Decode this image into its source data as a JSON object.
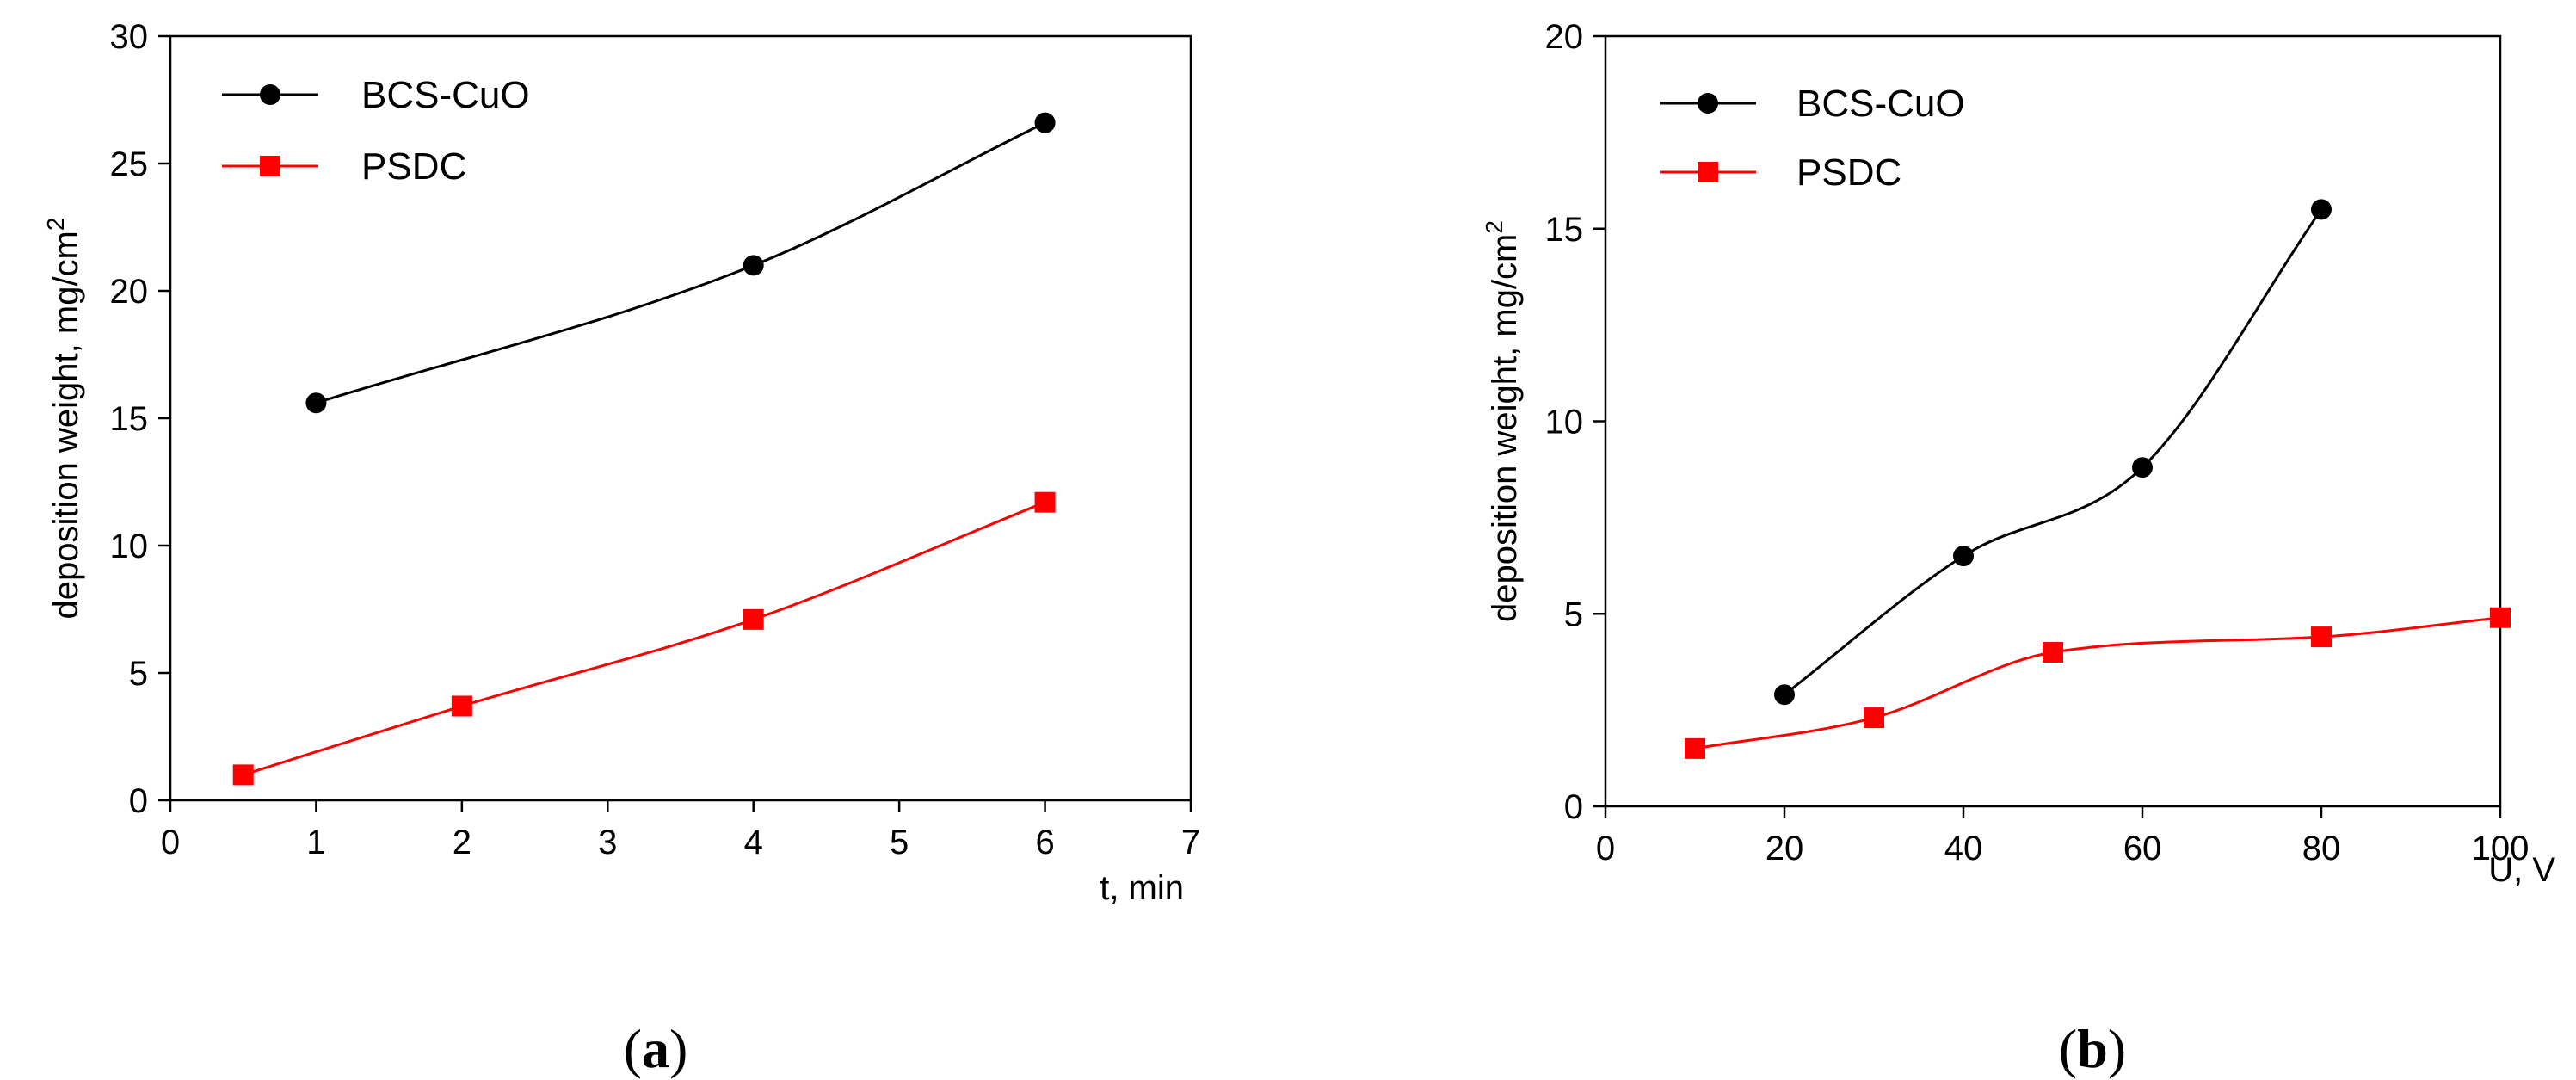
{
  "chart_data": [
    {
      "id": "a",
      "type": "line",
      "caption_open": "(",
      "caption_letter": "a",
      "caption_close": ")",
      "xlabel": "t, min",
      "ylabel": "deposition weight, mg/cm",
      "ylabel_sup": "2",
      "xlim": [
        0,
        7
      ],
      "ylim": [
        0,
        30
      ],
      "xticks": [
        0,
        1,
        2,
        3,
        4,
        5,
        6,
        7
      ],
      "yticks": [
        0,
        5,
        10,
        15,
        20,
        25,
        30
      ],
      "legend_position": "top-left",
      "series": [
        {
          "name": "BCS-CuO",
          "color": "#000000",
          "marker": "circle",
          "x": [
            1,
            4,
            6
          ],
          "y": [
            15.6,
            21.0,
            26.6
          ]
        },
        {
          "name": "PSDC",
          "color": "#ff0000",
          "marker": "square",
          "x": [
            0.5,
            2,
            4,
            6
          ],
          "y": [
            1.0,
            3.7,
            7.1,
            11.7
          ]
        }
      ]
    },
    {
      "id": "b",
      "type": "line",
      "caption_open": "(",
      "caption_letter": "b",
      "caption_close": ")",
      "xlabel": "U, V",
      "ylabel": "deposition weight, mg/cm",
      "ylabel_sup": "2",
      "xlim": [
        0,
        100
      ],
      "ylim": [
        0,
        20
      ],
      "xticks": [
        0,
        20,
        40,
        60,
        80,
        100
      ],
      "yticks": [
        0,
        5,
        10,
        15,
        20
      ],
      "legend_position": "top-left",
      "series": [
        {
          "name": "BCS-CuO",
          "color": "#000000",
          "marker": "circle",
          "x": [
            20,
            40,
            60,
            80
          ],
          "y": [
            2.9,
            6.5,
            8.8,
            15.5
          ]
        },
        {
          "name": "PSDC",
          "color": "#ff0000",
          "marker": "square",
          "x": [
            10,
            30,
            50,
            80,
            100
          ],
          "y": [
            1.5,
            2.3,
            4.0,
            4.4,
            4.9
          ]
        }
      ]
    }
  ]
}
